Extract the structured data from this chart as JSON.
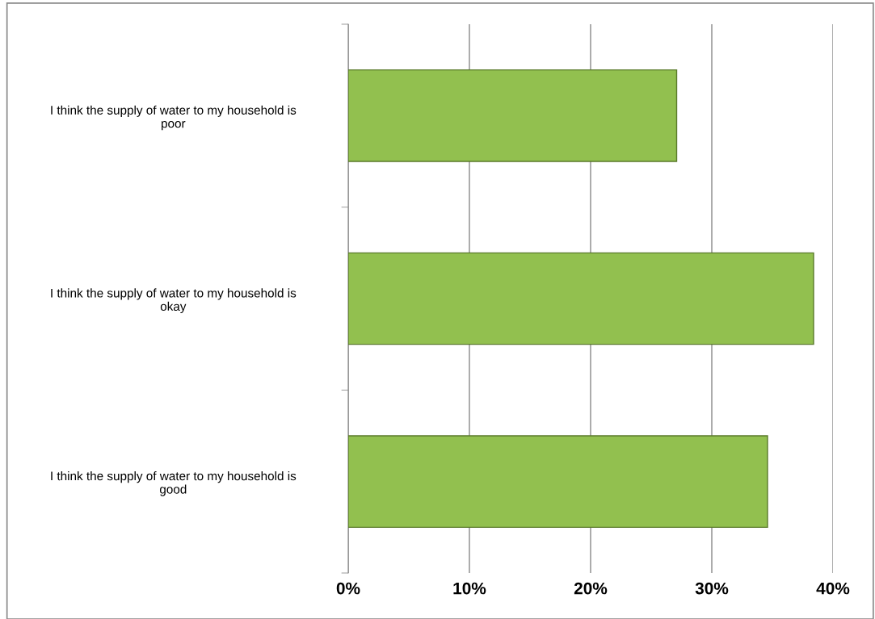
{
  "chart_data": {
    "type": "bar",
    "orientation": "horizontal",
    "categories": [
      "I think the supply of water to my household is\npoor",
      "I think the supply of water to my household is\nokay",
      "I think the supply of water to my household is\ngood"
    ],
    "values": [
      27.1,
      38.4,
      34.6
    ],
    "color": "#92c04f",
    "xlim": [
      0,
      40
    ],
    "xticks": [
      {
        "value": 0,
        "label": "0%"
      },
      {
        "value": 10,
        "label": "10%"
      },
      {
        "value": 20,
        "label": "20%"
      },
      {
        "value": 30,
        "label": "30%"
      },
      {
        "value": 40,
        "label": "40%"
      }
    ],
    "grid": "x",
    "legend": false
  }
}
